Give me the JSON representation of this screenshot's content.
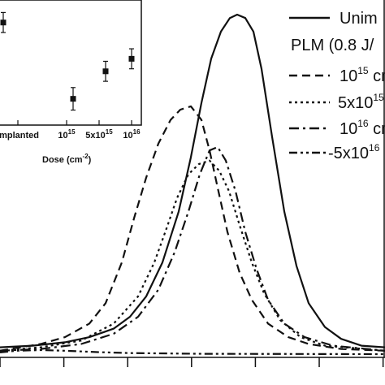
{
  "chart_data": [
    {
      "type": "line",
      "title": "",
      "xlabel": "",
      "ylabel": "",
      "x_range": [
        0,
        474
      ],
      "y_range": [
        0,
        1
      ],
      "legend_placement": "top-right",
      "legend": {
        "header": "PLM (0.8 J/",
        "entries": [
          {
            "key": "unimplanted",
            "text": "Unim",
            "style": "solid"
          },
          {
            "key": "d1e15",
            "text": "10",
            "sup": "15",
            "unit": " cm",
            "style": "dashed"
          },
          {
            "key": "d5e15",
            "text": "5x10",
            "sup": "15",
            "unit": "",
            "style": "dotted"
          },
          {
            "key": "d1e16",
            "text": "10",
            "sup": "16",
            "unit": " cm",
            "style": "dashdot"
          },
          {
            "key": "d5e16",
            "text": "-5x10",
            "sup": "16",
            "unit": "",
            "style": "dashdotdot"
          }
        ]
      },
      "series": [
        {
          "key": "unimplanted",
          "style": "solid",
          "points": [
            [
              0,
              0.02
            ],
            [
              40,
              0.025
            ],
            [
              80,
              0.035
            ],
            [
              110,
              0.05
            ],
            [
              140,
              0.075
            ],
            [
              160,
              0.11
            ],
            [
              180,
              0.17
            ],
            [
              200,
              0.27
            ],
            [
              220,
              0.42
            ],
            [
              235,
              0.58
            ],
            [
              248,
              0.74
            ],
            [
              260,
              0.87
            ],
            [
              272,
              0.95
            ],
            [
              283,
              0.99
            ],
            [
              292,
              1.0
            ],
            [
              302,
              0.99
            ],
            [
              312,
              0.95
            ],
            [
              322,
              0.84
            ],
            [
              335,
              0.64
            ],
            [
              350,
              0.42
            ],
            [
              365,
              0.26
            ],
            [
              380,
              0.15
            ],
            [
              400,
              0.08
            ],
            [
              420,
              0.045
            ],
            [
              445,
              0.025
            ],
            [
              474,
              0.02
            ]
          ]
        },
        {
          "key": "d1e15",
          "style": "dashed",
          "points": [
            [
              0,
              0.01
            ],
            [
              50,
              0.03
            ],
            [
              80,
              0.05
            ],
            [
              110,
              0.09
            ],
            [
              130,
              0.15
            ],
            [
              150,
              0.27
            ],
            [
              165,
              0.4
            ],
            [
              180,
              0.52
            ],
            [
              195,
              0.62
            ],
            [
              210,
              0.69
            ],
            [
              222,
              0.72
            ],
            [
              235,
              0.73
            ],
            [
              248,
              0.69
            ],
            [
              258,
              0.6
            ],
            [
              268,
              0.49
            ],
            [
              280,
              0.36
            ],
            [
              295,
              0.24
            ],
            [
              310,
              0.16
            ],
            [
              330,
              0.09
            ],
            [
              355,
              0.05
            ],
            [
              380,
              0.03
            ],
            [
              420,
              0.015
            ],
            [
              474,
              0.01
            ]
          ]
        },
        {
          "key": "d5e15",
          "style": "dotted",
          "points": [
            [
              0,
              0.01
            ],
            [
              50,
              0.02
            ],
            [
              100,
              0.04
            ],
            [
              140,
              0.09
            ],
            [
              170,
              0.17
            ],
            [
              190,
              0.27
            ],
            [
              205,
              0.37
            ],
            [
              218,
              0.46
            ],
            [
              232,
              0.53
            ],
            [
              245,
              0.56
            ],
            [
              258,
              0.57
            ],
            [
              270,
              0.54
            ],
            [
              282,
              0.48
            ],
            [
              295,
              0.38
            ],
            [
              310,
              0.27
            ],
            [
              325,
              0.18
            ],
            [
              345,
              0.1
            ],
            [
              370,
              0.05
            ],
            [
              400,
              0.025
            ],
            [
              474,
              0.01
            ]
          ]
        },
        {
          "key": "d1e16",
          "style": "dashdot",
          "points": [
            [
              0,
              0.01
            ],
            [
              50,
              0.015
            ],
            [
              100,
              0.03
            ],
            [
              140,
              0.06
            ],
            [
              170,
              0.11
            ],
            [
              195,
              0.19
            ],
            [
              215,
              0.3
            ],
            [
              232,
              0.42
            ],
            [
              246,
              0.53
            ],
            [
              258,
              0.6
            ],
            [
              268,
              0.61
            ],
            [
              278,
              0.57
            ],
            [
              290,
              0.48
            ],
            [
              302,
              0.36
            ],
            [
              316,
              0.25
            ],
            [
              330,
              0.16
            ],
            [
              350,
              0.09
            ],
            [
              375,
              0.05
            ],
            [
              410,
              0.025
            ],
            [
              474,
              0.01
            ]
          ]
        },
        {
          "key": "d5e16",
          "style": "dashdotdot",
          "points": [
            [
              0,
              0.005
            ],
            [
              20,
              0.01
            ],
            [
              50,
              0.012
            ],
            [
              80,
              0.01
            ],
            [
              120,
              0.006
            ],
            [
              160,
              0.003
            ],
            [
              250,
              0.001
            ],
            [
              474,
              0.0
            ]
          ]
        }
      ],
      "x_ticks_count": 7
    },
    {
      "type": "scatter",
      "title": "",
      "xlabel": "Dose (cm",
      "xlabel_sup": "-2",
      "xlabel_close": ")",
      "ylabel": "",
      "x_range": [
        0,
        4.4
      ],
      "y_range": [
        0,
        1
      ],
      "tick_labels": [
        {
          "key": "implanted",
          "x": 0.6,
          "text": "implanted",
          "sup": ""
        },
        {
          "key": "t1e15",
          "x": 2.1,
          "text": "10",
          "sup": "15"
        },
        {
          "key": "t5e15",
          "x": 3.1,
          "text": "5x10",
          "sup": "15"
        },
        {
          "key": "t1e16",
          "x": 4.1,
          "text": "10",
          "sup": "16"
        }
      ],
      "points": [
        {
          "key": "unimplanted",
          "x": 0.15,
          "y": 0.82,
          "err": 0.08
        },
        {
          "key": "d1e15",
          "x": 2.3,
          "y": 0.21,
          "err": 0.09
        },
        {
          "key": "d5e15",
          "x": 3.3,
          "y": 0.43,
          "err": 0.08
        },
        {
          "key": "d1e16",
          "x": 4.1,
          "y": 0.53,
          "err": 0.08
        }
      ]
    }
  ]
}
